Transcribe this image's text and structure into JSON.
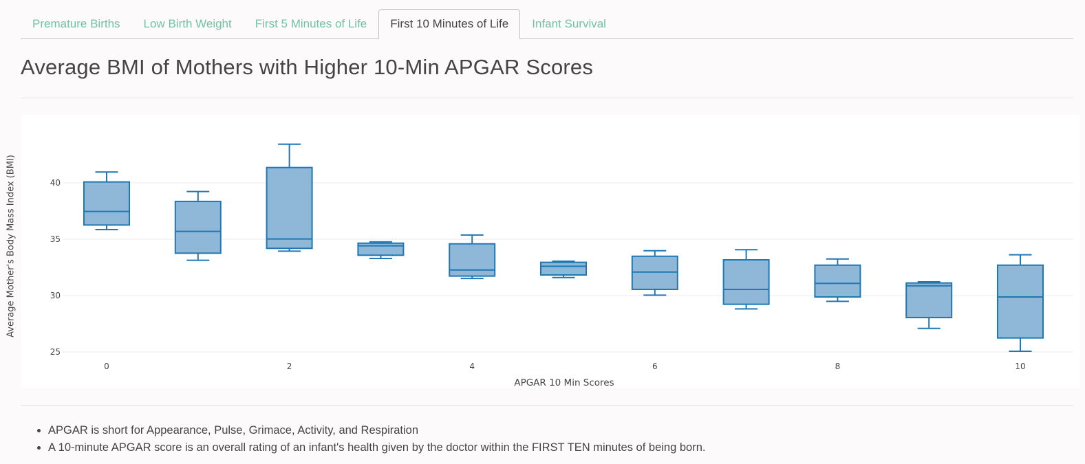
{
  "tabs": [
    {
      "label": "Premature Births",
      "active": false
    },
    {
      "label": "Low Birth Weight",
      "active": false
    },
    {
      "label": "First 5 Minutes of Life",
      "active": false
    },
    {
      "label": "First 10 Minutes of Life",
      "active": true
    },
    {
      "label": "Infant Survival",
      "active": false
    }
  ],
  "page": {
    "title": "Average BMI of Mothers with Higher 10-Min APGAR Scores"
  },
  "colors": {
    "tab_link": "#6fc3a3",
    "box_fill": "#8fb8d8",
    "box_line": "#1f77b4",
    "gridline": "#ebebeb",
    "background": "#fcfafb"
  },
  "chart_data": {
    "type": "box",
    "title": "Average BMI of Mothers with Higher 10-Min APGAR Scores",
    "xlabel": "APGAR 10 Min Scores",
    "ylabel": "Average Mother's Body Mass Index (BMI)",
    "x_ticks": [
      "0",
      "2",
      "4",
      "6",
      "8",
      "10"
    ],
    "y_ticks": [
      "25",
      "30",
      "35",
      "40"
    ],
    "ylim": [
      25,
      43.6
    ],
    "grid": true,
    "legend": "none",
    "categories": [
      0,
      1,
      2,
      3,
      4,
      5,
      6,
      7,
      8,
      9,
      10
    ],
    "boxes": [
      {
        "x": 0,
        "lower_whisker": 35.85,
        "q1": 36.26,
        "median": 37.46,
        "q3": 40.08,
        "upper_whisker": 40.96
      },
      {
        "x": 1,
        "lower_whisker": 33.13,
        "q1": 33.76,
        "median": 35.69,
        "q3": 38.35,
        "upper_whisker": 39.23
      },
      {
        "x": 2,
        "lower_whisker": 33.94,
        "q1": 34.19,
        "median": 35.02,
        "q3": 41.36,
        "upper_whisker": 43.43
      },
      {
        "x": 3,
        "lower_whisker": 33.29,
        "q1": 33.58,
        "median": 34.41,
        "q3": 34.65,
        "upper_whisker": 34.76
      },
      {
        "x": 4,
        "lower_whisker": 31.52,
        "q1": 31.73,
        "median": 32.27,
        "q3": 34.59,
        "upper_whisker": 35.37
      },
      {
        "x": 5,
        "lower_whisker": 31.6,
        "q1": 31.83,
        "median": 32.6,
        "q3": 32.95,
        "upper_whisker": 33.05
      },
      {
        "x": 6,
        "lower_whisker": 30.04,
        "q1": 30.55,
        "median": 32.09,
        "q3": 33.49,
        "upper_whisker": 33.98
      },
      {
        "x": 7,
        "lower_whisker": 28.82,
        "q1": 29.23,
        "median": 30.55,
        "q3": 33.17,
        "upper_whisker": 34.07
      },
      {
        "x": 8,
        "lower_whisker": 29.49,
        "q1": 29.88,
        "median": 31.08,
        "q3": 32.7,
        "upper_whisker": 33.25
      },
      {
        "x": 9,
        "lower_whisker": 27.09,
        "q1": 28.05,
        "median": 30.87,
        "q3": 31.12,
        "upper_whisker": 31.22
      },
      {
        "x": 10,
        "lower_whisker": 25.06,
        "q1": 26.24,
        "median": 29.88,
        "q3": 32.7,
        "upper_whisker": 33.62
      }
    ]
  },
  "notes": [
    "APGAR is short for Appearance, Pulse, Grimace, Activity, and Respiration",
    "A 10-minute APGAR score is an overall rating of an infant's health given by the doctor within the FIRST TEN minutes of being born."
  ]
}
